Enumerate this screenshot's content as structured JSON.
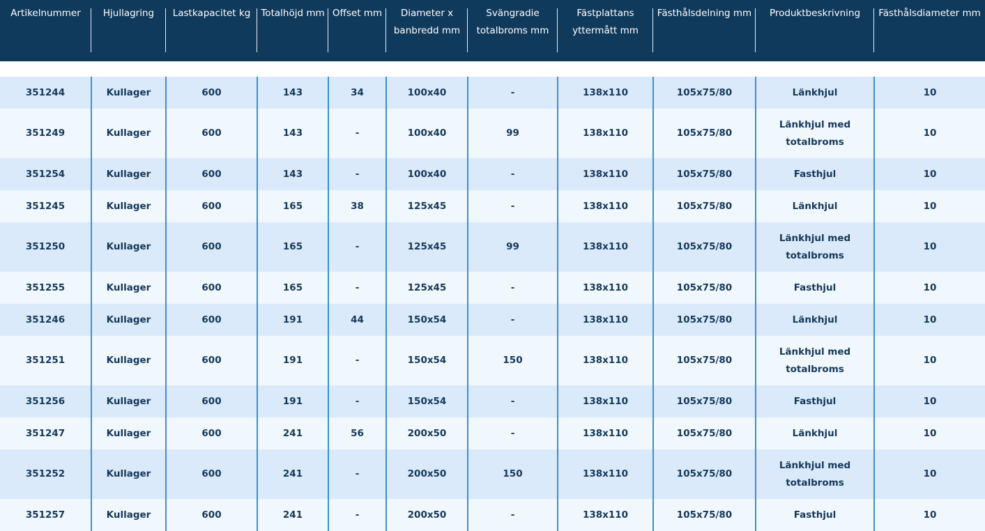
{
  "table": {
    "headers": [
      "Artikelnummer",
      "Hjullagring",
      "Lastkapacitet kg",
      "Totalhöjd mm",
      "Offset mm",
      "Diameter x banbredd mm",
      "Svängradie totalbroms mm",
      "Fästplattans yttermått mm",
      "Fästhålsdelning mm",
      "Produktbeskrivning",
      "Fästhålsdiameter mm"
    ],
    "rows": [
      [
        "351244",
        "Kullager",
        "600",
        "143",
        "34",
        "100x40",
        "-",
        "138x110",
        "105x75/80",
        "Länkhjul",
        "10"
      ],
      [
        "351249",
        "Kullager",
        "600",
        "143",
        "-",
        "100x40",
        "99",
        "138x110",
        "105x75/80",
        "Länkhjul med totalbroms",
        "10"
      ],
      [
        "351254",
        "Kullager",
        "600",
        "143",
        "-",
        "100x40",
        "-",
        "138x110",
        "105x75/80",
        "Fasthjul",
        "10"
      ],
      [
        "351245",
        "Kullager",
        "600",
        "165",
        "38",
        "125x45",
        "-",
        "138x110",
        "105x75/80",
        "Länkhjul",
        "10"
      ],
      [
        "351250",
        "Kullager",
        "600",
        "165",
        "-",
        "125x45",
        "99",
        "138x110",
        "105x75/80",
        "Länkhjul med totalbroms",
        "10"
      ],
      [
        "351255",
        "Kullager",
        "600",
        "165",
        "-",
        "125x45",
        "-",
        "138x110",
        "105x75/80",
        "Fasthjul",
        "10"
      ],
      [
        "351246",
        "Kullager",
        "600",
        "191",
        "44",
        "150x54",
        "-",
        "138x110",
        "105x75/80",
        "Länkhjul",
        "10"
      ],
      [
        "351251",
        "Kullager",
        "600",
        "191",
        "-",
        "150x54",
        "150",
        "138x110",
        "105x75/80",
        "Länkhjul med totalbroms",
        "10"
      ],
      [
        "351256",
        "Kullager",
        "600",
        "191",
        "-",
        "150x54",
        "-",
        "138x110",
        "105x75/80",
        "Fasthjul",
        "10"
      ],
      [
        "351247",
        "Kullager",
        "600",
        "241",
        "56",
        "200x50",
        "-",
        "138x110",
        "105x75/80",
        "Länkhjul",
        "10"
      ],
      [
        "351252",
        "Kullager",
        "600",
        "241",
        "-",
        "200x50",
        "150",
        "138x110",
        "105x75/80",
        "Länkhjul med totalbroms",
        "10"
      ],
      [
        "351257",
        "Kullager",
        "600",
        "241",
        "-",
        "200x50",
        "-",
        "138x110",
        "105x75/80",
        "Fasthjul",
        "10"
      ]
    ]
  },
  "colors": {
    "header_bg": "#103a5c",
    "row_odd": "#daeafa",
    "row_even": "#f1f8fd",
    "column_divider": "#3a8fd6",
    "text": "#15385a"
  }
}
